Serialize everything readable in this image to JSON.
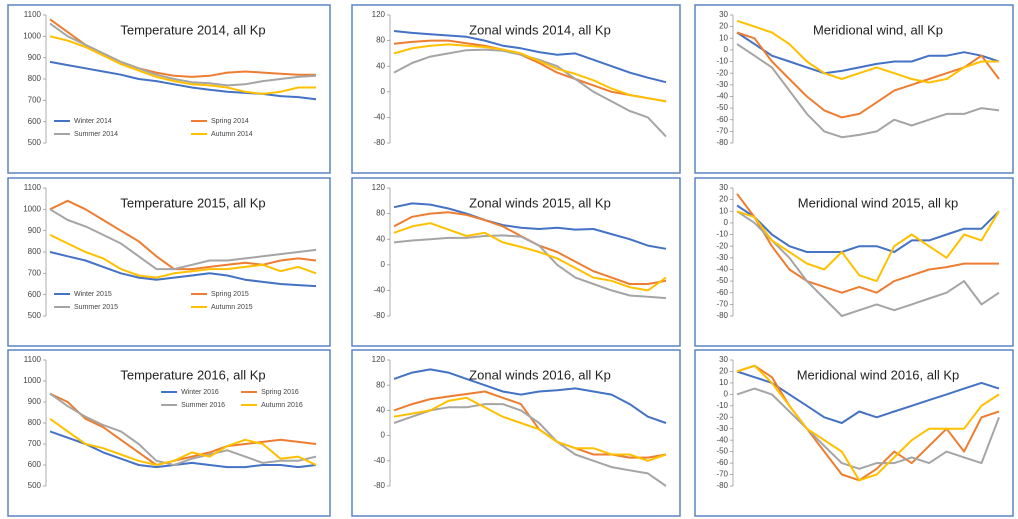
{
  "chart_data": [
    {
      "type": "line",
      "title": "Temperature 2014, all Kp",
      "ylim": [
        500,
        1100
      ],
      "yticks": [
        500,
        600,
        700,
        800,
        900,
        1000,
        1100
      ],
      "legend": "lower",
      "series": [
        {
          "name": "Winter 2014",
          "color": "#4472c4",
          "values": [
            880,
            865,
            850,
            835,
            820,
            800,
            790,
            775,
            760,
            750,
            740,
            735,
            730,
            720,
            715,
            705
          ]
        },
        {
          "name": "Spring 2014",
          "color": "#ed7d31",
          "values": [
            1080,
            1020,
            960,
            920,
            880,
            850,
            830,
            815,
            810,
            815,
            830,
            835,
            830,
            825,
            820,
            820
          ]
        },
        {
          "name": "Summer 2014",
          "color": "#a5a5a5",
          "values": [
            1060,
            1000,
            960,
            920,
            880,
            850,
            820,
            800,
            785,
            780,
            770,
            775,
            790,
            800,
            810,
            815
          ]
        },
        {
          "name": "Autumn 2014",
          "color": "#ffc000",
          "values": [
            1000,
            980,
            950,
            910,
            870,
            840,
            810,
            790,
            775,
            770,
            760,
            740,
            730,
            740,
            760,
            760
          ]
        }
      ]
    },
    {
      "type": "line",
      "title": "Zonal winds 2014, all Kp",
      "ylim": [
        -80,
        120
      ],
      "yticks": [
        -80,
        -40,
        0,
        40,
        80,
        120
      ],
      "series": [
        {
          "color": "#4472c4",
          "values": [
            95,
            92,
            90,
            88,
            86,
            80,
            72,
            68,
            62,
            58,
            60,
            50,
            40,
            30,
            22,
            15
          ]
        },
        {
          "color": "#ed7d31",
          "values": [
            75,
            78,
            80,
            80,
            76,
            72,
            66,
            58,
            45,
            30,
            20,
            10,
            0,
            -5,
            -10,
            -15
          ]
        },
        {
          "color": "#a5a5a5",
          "values": [
            30,
            45,
            55,
            60,
            65,
            66,
            64,
            58,
            50,
            40,
            20,
            0,
            -15,
            -30,
            -40,
            -70
          ]
        },
        {
          "color": "#ffc000",
          "values": [
            60,
            68,
            72,
            74,
            72,
            70,
            66,
            60,
            48,
            36,
            28,
            18,
            5,
            -5,
            -10,
            -15
          ]
        }
      ]
    },
    {
      "type": "line",
      "title": "Meridional wind, all Kp",
      "ylim": [
        -80,
        30
      ],
      "yticks": [
        -80,
        -70,
        -60,
        -50,
        -40,
        -30,
        -20,
        -10,
        0,
        10,
        20,
        30
      ],
      "series": [
        {
          "color": "#4472c4",
          "values": [
            15,
            5,
            -5,
            -10,
            -15,
            -20,
            -18,
            -15,
            -12,
            -10,
            -10,
            -5,
            -5,
            -2,
            -5,
            -10
          ]
        },
        {
          "color": "#ed7d31",
          "values": [
            15,
            10,
            -10,
            -25,
            -40,
            -52,
            -58,
            -55,
            -45,
            -35,
            -30,
            -25,
            -20,
            -15,
            -5,
            -25
          ]
        },
        {
          "color": "#a5a5a5",
          "values": [
            5,
            -5,
            -15,
            -35,
            -55,
            -70,
            -75,
            -73,
            -70,
            -60,
            -65,
            -60,
            -55,
            -55,
            -50,
            -52
          ]
        },
        {
          "color": "#ffc000",
          "values": [
            25,
            20,
            15,
            5,
            -10,
            -20,
            -25,
            -20,
            -15,
            -20,
            -25,
            -28,
            -25,
            -15,
            -10,
            -10
          ]
        }
      ]
    },
    {
      "type": "line",
      "title": "Temperature 2015, all Kp",
      "ylim": [
        500,
        1100
      ],
      "yticks": [
        500,
        600,
        700,
        800,
        900,
        1000,
        1100
      ],
      "legend": "lower",
      "series": [
        {
          "name": "Winter 2015",
          "color": "#4472c4",
          "values": [
            800,
            780,
            760,
            730,
            700,
            680,
            670,
            680,
            690,
            700,
            690,
            670,
            660,
            650,
            645,
            640
          ]
        },
        {
          "name": "Spring 2015",
          "color": "#ed7d31",
          "values": [
            1000,
            1040,
            1000,
            950,
            900,
            850,
            780,
            720,
            720,
            730,
            740,
            750,
            740,
            760,
            770,
            760
          ]
        },
        {
          "name": "Summer 2015",
          "color": "#a5a5a5",
          "values": [
            1000,
            950,
            920,
            880,
            840,
            780,
            720,
            720,
            740,
            760,
            760,
            770,
            780,
            790,
            800,
            810
          ]
        },
        {
          "name": "Autumn 2015",
          "color": "#ffc000",
          "values": [
            880,
            840,
            800,
            770,
            720,
            690,
            680,
            700,
            710,
            720,
            720,
            730,
            740,
            710,
            730,
            700
          ]
        }
      ]
    },
    {
      "type": "line",
      "title": "Zonal winds 2015, all Kp",
      "ylim": [
        -80,
        120
      ],
      "yticks": [
        -80,
        -40,
        0,
        40,
        80,
        120
      ],
      "series": [
        {
          "color": "#4472c4",
          "values": [
            90,
            96,
            94,
            88,
            80,
            70,
            62,
            58,
            56,
            58,
            55,
            56,
            48,
            40,
            30,
            25
          ]
        },
        {
          "color": "#ed7d31",
          "values": [
            60,
            75,
            80,
            82,
            78,
            70,
            60,
            45,
            30,
            20,
            5,
            -10,
            -20,
            -30,
            -30,
            -25
          ]
        },
        {
          "color": "#a5a5a5",
          "values": [
            35,
            38,
            40,
            42,
            42,
            45,
            46,
            44,
            30,
            0,
            -20,
            -30,
            -40,
            -48,
            -50,
            -52
          ]
        },
        {
          "color": "#ffc000",
          "values": [
            50,
            60,
            65,
            55,
            45,
            50,
            35,
            28,
            20,
            10,
            -5,
            -20,
            -25,
            -35,
            -40,
            -20
          ]
        }
      ]
    },
    {
      "type": "line",
      "title": "Meridional wind 2015, all kp",
      "ylim": [
        -80,
        30
      ],
      "yticks": [
        -80,
        -70,
        -60,
        -50,
        -40,
        -30,
        -20,
        -10,
        0,
        10,
        20,
        30
      ],
      "series": [
        {
          "color": "#4472c4",
          "values": [
            15,
            5,
            -10,
            -20,
            -25,
            -25,
            -25,
            -20,
            -20,
            -25,
            -15,
            -15,
            -10,
            -5,
            -5,
            10
          ]
        },
        {
          "color": "#ed7d31",
          "values": [
            25,
            5,
            -20,
            -40,
            -50,
            -55,
            -60,
            -55,
            -60,
            -50,
            -45,
            -40,
            -38,
            -35,
            -35,
            -35
          ]
        },
        {
          "color": "#a5a5a5",
          "values": [
            10,
            0,
            -15,
            -30,
            -50,
            -65,
            -80,
            -75,
            -70,
            -75,
            -70,
            -65,
            -60,
            -50,
            -70,
            -60
          ]
        },
        {
          "color": "#ffc000",
          "values": [
            10,
            5,
            -15,
            -25,
            -35,
            -40,
            -25,
            -45,
            -50,
            -20,
            -10,
            -20,
            -30,
            -10,
            -15,
            10
          ]
        }
      ]
    },
    {
      "type": "line",
      "title": "Temperature 2016, all Kp",
      "ylim": [
        500,
        1100
      ],
      "yticks": [
        500,
        600,
        700,
        800,
        900,
        1000,
        1100
      ],
      "legend": "upper right",
      "series": [
        {
          "name": "Winter 2016",
          "color": "#4472c4",
          "values": [
            760,
            730,
            700,
            660,
            630,
            600,
            590,
            600,
            610,
            600,
            590,
            590,
            600,
            600,
            590,
            600
          ]
        },
        {
          "name": "Spring 2016",
          "color": "#ed7d31",
          "values": [
            940,
            900,
            820,
            780,
            720,
            660,
            600,
            620,
            640,
            660,
            690,
            700,
            710,
            720,
            710,
            700
          ]
        },
        {
          "name": "Summer 2016",
          "color": "#a5a5a5",
          "values": [
            940,
            880,
            830,
            790,
            760,
            700,
            620,
            600,
            630,
            650,
            670,
            640,
            610,
            620,
            620,
            640
          ]
        },
        {
          "name": "Autumn 2016",
          "color": "#ffc000",
          "values": [
            820,
            760,
            700,
            680,
            650,
            620,
            600,
            620,
            660,
            640,
            690,
            720,
            700,
            630,
            640,
            600
          ]
        }
      ]
    },
    {
      "type": "line",
      "title": "Zonal winds 2016, all Kp",
      "ylim": [
        -80,
        120
      ],
      "yticks": [
        -80,
        -40,
        0,
        40,
        80,
        120
      ],
      "series": [
        {
          "color": "#4472c4",
          "values": [
            90,
            100,
            105,
            100,
            90,
            80,
            70,
            65,
            70,
            72,
            75,
            70,
            65,
            50,
            30,
            20
          ]
        },
        {
          "color": "#ed7d31",
          "values": [
            40,
            50,
            58,
            62,
            66,
            70,
            60,
            50,
            10,
            -10,
            -20,
            -30,
            -30,
            -35,
            -35,
            -30
          ]
        },
        {
          "color": "#a5a5a5",
          "values": [
            20,
            30,
            40,
            45,
            45,
            50,
            50,
            40,
            20,
            -10,
            -30,
            -40,
            -50,
            -55,
            -60,
            -80
          ]
        },
        {
          "color": "#ffc000",
          "values": [
            30,
            35,
            40,
            55,
            60,
            45,
            30,
            20,
            10,
            -10,
            -20,
            -20,
            -30,
            -30,
            -40,
            -30
          ]
        }
      ]
    },
    {
      "type": "line",
      "title": "Meridional wind 2016, all Kp",
      "ylim": [
        -80,
        30
      ],
      "yticks": [
        -80,
        -70,
        -60,
        -50,
        -40,
        -30,
        -20,
        -10,
        0,
        10,
        20,
        30
      ],
      "series": [
        {
          "color": "#4472c4",
          "values": [
            20,
            15,
            10,
            0,
            -10,
            -20,
            -25,
            -15,
            -20,
            -15,
            -10,
            -5,
            0,
            5,
            10,
            5
          ]
        },
        {
          "color": "#ed7d31",
          "values": [
            20,
            25,
            15,
            -10,
            -30,
            -50,
            -70,
            -75,
            -65,
            -50,
            -60,
            -45,
            -30,
            -50,
            -20,
            -15
          ]
        },
        {
          "color": "#a5a5a5",
          "values": [
            0,
            5,
            0,
            -15,
            -30,
            -45,
            -60,
            -65,
            -60,
            -60,
            -55,
            -60,
            -50,
            -55,
            -60,
            -20
          ]
        },
        {
          "color": "#ffc000",
          "values": [
            20,
            25,
            10,
            -10,
            -30,
            -40,
            -50,
            -75,
            -70,
            -55,
            -40,
            -30,
            -30,
            -30,
            -10,
            0
          ]
        }
      ]
    }
  ]
}
